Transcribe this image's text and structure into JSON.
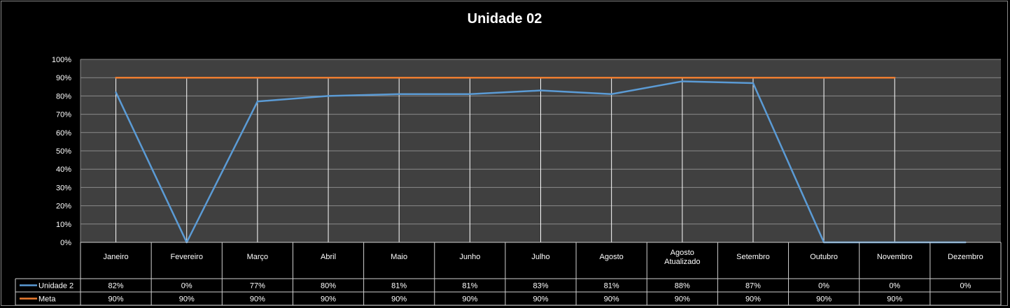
{
  "chart_data": {
    "type": "line",
    "title": "Unidade 02",
    "categories": [
      "Janeiro",
      "Fevereiro",
      "Março",
      "Abril",
      "Maio",
      "Junho",
      "Julho",
      "Agosto",
      "Agosto Atualizado",
      "Setembro",
      "Outubro",
      "Novembro",
      "Dezembro"
    ],
    "series": [
      {
        "name": "Unidade 2",
        "color": "#5b9bd5",
        "values": [
          82,
          0,
          77,
          80,
          81,
          81,
          83,
          81,
          88,
          87,
          0,
          0,
          0
        ],
        "labels": [
          "82%",
          "0%",
          "77%",
          "80%",
          "81%",
          "81%",
          "83%",
          "81%",
          "88%",
          "87%",
          "0%",
          "0%",
          "0%"
        ]
      },
      {
        "name": "Meta",
        "color": "#ed7d31",
        "values": [
          90,
          90,
          90,
          90,
          90,
          90,
          90,
          90,
          90,
          90,
          90,
          90,
          null
        ],
        "labels": [
          "90%",
          "90%",
          "90%",
          "90%",
          "90%",
          "90%",
          "90%",
          "90%",
          "90%",
          "90%",
          "90%",
          "90%",
          ""
        ]
      }
    ],
    "ylim": [
      0,
      100
    ],
    "yticks": [
      "0%",
      "10%",
      "20%",
      "30%",
      "40%",
      "50%",
      "60%",
      "70%",
      "80%",
      "90%",
      "100%"
    ],
    "grid": true,
    "legend": "data-table"
  }
}
